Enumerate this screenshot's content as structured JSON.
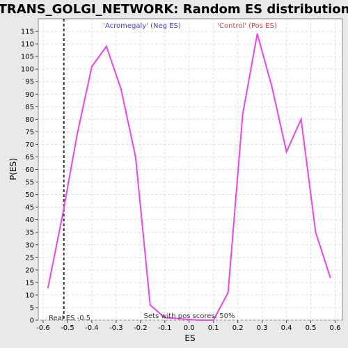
{
  "chart_data": {
    "type": "line",
    "title": "TRANS_GOLGI_NETWORK: Random ES distribution",
    "xlabel": "ES",
    "ylabel": "P(ES)",
    "xlim": [
      -0.62,
      0.63
    ],
    "ylim": [
      0,
      120
    ],
    "x_ticks": [
      -0.6,
      -0.5,
      -0.4,
      -0.3,
      -0.2,
      -0.1,
      0.0,
      0.1,
      0.2,
      0.3,
      0.4,
      0.5,
      0.6
    ],
    "x_tick_labels": [
      "-0.6",
      "-0.5",
      "-0.4",
      "-0.3",
      "-0.2",
      "-0.1",
      "0.0",
      "0.1",
      "0.2",
      "0.3",
      "0.4",
      "0.5",
      "0.6"
    ],
    "y_ticks": [
      0,
      5,
      10,
      15,
      20,
      25,
      30,
      35,
      40,
      45,
      50,
      55,
      60,
      65,
      70,
      75,
      80,
      85,
      90,
      95,
      100,
      105,
      110,
      115
    ],
    "y_tick_labels": [
      "0",
      "5",
      "10",
      "15",
      "20",
      "25",
      "30",
      "35",
      "40",
      "45",
      "50",
      "55",
      "60",
      "65",
      "70",
      "75",
      "80",
      "85",
      "90",
      "95",
      "100",
      "105",
      "110",
      "115"
    ],
    "grid": true,
    "series": [
      {
        "color": "#ee44ee",
        "x": [
          -0.58,
          -0.52,
          -0.46,
          -0.4,
          -0.34,
          -0.28,
          -0.22,
          -0.16,
          -0.1,
          0.04,
          0.1,
          0.16,
          0.22,
          0.28,
          0.34,
          0.4,
          0.46,
          0.52,
          0.58
        ],
        "y": [
          13,
          42,
          74,
          101,
          109,
          92,
          65,
          6,
          1,
          0,
          0,
          11,
          82,
          114,
          93,
          67,
          80,
          35,
          17
        ]
      }
    ],
    "annotations": {
      "neg_label": "'Acromegaly' (Neg ES)",
      "neg_color": "#4444cc",
      "pos_label": "'Control' (Pos ES)",
      "pos_color": "#dd4444",
      "real_es_label": "Real ES -0.5",
      "real_es_value": -0.515,
      "pos_scores_label": "Sets with pos scores: 50%"
    }
  }
}
